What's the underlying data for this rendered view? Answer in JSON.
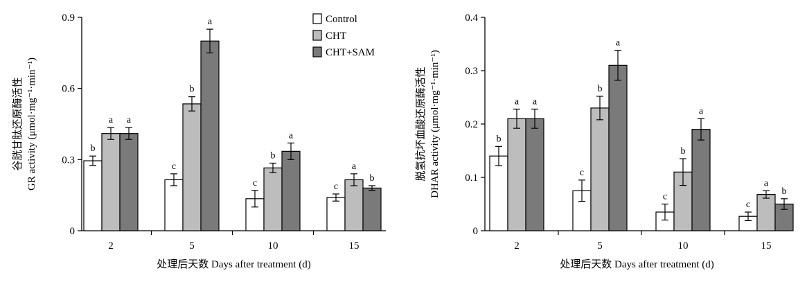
{
  "chart_data": [
    {
      "type": "bar",
      "xlabel": "处理后天数 Days after treatment (d)",
      "ylabel_cn": "谷胱甘肽还原酶活性",
      "ylabel_en": "GR activity (μmol·mg⁻¹·min⁻¹)",
      "ylim": [
        0,
        0.9
      ],
      "yticks": [
        "0",
        "0.3",
        "0.6",
        "0.9"
      ],
      "categories": [
        "2",
        "5",
        "10",
        "15"
      ],
      "series": [
        {
          "name": "Control",
          "color": "#ffffff",
          "values": [
            0.295,
            0.215,
            0.135,
            0.14
          ],
          "errors": [
            0.02,
            0.025,
            0.035,
            0.015
          ],
          "letters": [
            "b",
            "c",
            "c",
            "c"
          ]
        },
        {
          "name": "CHT",
          "color": "#bdbdbd",
          "values": [
            0.41,
            0.535,
            0.265,
            0.215
          ],
          "errors": [
            0.025,
            0.03,
            0.02,
            0.025
          ],
          "letters": [
            "a",
            "b",
            "b",
            "a"
          ]
        },
        {
          "name": "CHT+SAM",
          "color": "#7a7a7a",
          "values": [
            0.41,
            0.8,
            0.335,
            0.18
          ],
          "errors": [
            0.025,
            0.05,
            0.035,
            0.01
          ],
          "letters": [
            "a",
            "a",
            "a",
            "b"
          ]
        }
      ],
      "legend": {
        "position": "top-right",
        "items": [
          "Control",
          "CHT",
          "CHT+SAM"
        ]
      }
    },
    {
      "type": "bar",
      "xlabel": "处理后天数 Days after treatment (d)",
      "ylabel_cn": "脱氢抗坏血酸还原酶活性",
      "ylabel_en": "DHAR activity (μmol·mg⁻¹·min⁻¹)",
      "ylim": [
        0,
        0.4
      ],
      "yticks": [
        "0",
        "0.1",
        "0.2",
        "0.3",
        "0.4"
      ],
      "categories": [
        "2",
        "5",
        "10",
        "15"
      ],
      "series": [
        {
          "name": "Control",
          "color": "#ffffff",
          "values": [
            0.14,
            0.075,
            0.035,
            0.027
          ],
          "errors": [
            0.018,
            0.02,
            0.015,
            0.008
          ],
          "letters": [
            "b",
            "c",
            "c",
            "c"
          ]
        },
        {
          "name": "CHT",
          "color": "#bdbdbd",
          "values": [
            0.21,
            0.23,
            0.11,
            0.068
          ],
          "errors": [
            0.018,
            0.022,
            0.025,
            0.007
          ],
          "letters": [
            "a",
            "b",
            "b",
            "a"
          ]
        },
        {
          "name": "CHT+SAM",
          "color": "#7a7a7a",
          "values": [
            0.21,
            0.31,
            0.19,
            0.05
          ],
          "errors": [
            0.018,
            0.028,
            0.02,
            0.01
          ],
          "letters": [
            "a",
            "a",
            "a",
            "b"
          ]
        }
      ]
    }
  ]
}
